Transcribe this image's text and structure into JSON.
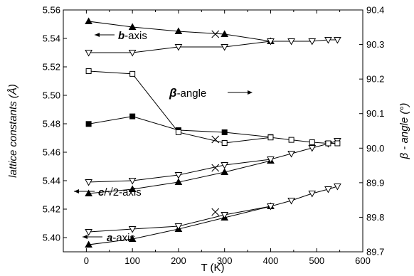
{
  "chart_data": {
    "type": "line",
    "xlabel": "T (K)",
    "ylabel_left": "lattice constants (Å)",
    "ylabel_right": "β - angle (°)",
    "xlim": [
      -50,
      600
    ],
    "ylim_left": [
      5.39,
      5.56
    ],
    "ylim_right": [
      89.7,
      90.4
    ],
    "x_ticks": [
      0,
      100,
      200,
      300,
      400,
      500,
      600
    ],
    "y_left_ticks": [
      "5.40",
      "5.42",
      "5.44",
      "5.46",
      "5.48",
      "5.50",
      "5.52",
      "5.54",
      "5.56"
    ],
    "y_right_ticks": [
      "89.7",
      "89.8",
      "89.9",
      "90.0",
      "90.1",
      "90.2",
      "90.3",
      "90.4"
    ],
    "annotations": {
      "b_axis": {
        "bold": "b",
        "rest": "-axis"
      },
      "c_axis": {
        "bold": "c",
        "rest": "/√2-axis"
      },
      "a_axis": {
        "bold": "a",
        "rest": "-axis"
      },
      "beta": {
        "symbol": "β",
        "rest": "-angle"
      }
    },
    "series": [
      {
        "axis": "left",
        "marker": "triangle-up-filled",
        "x": [
          5,
          100,
          200,
          300,
          400
        ],
        "y": [
          5.552,
          5.548,
          5.545,
          5.543,
          5.538
        ]
      },
      {
        "axis": "left",
        "marker": "triangle-down-open",
        "x": [
          5,
          100,
          200,
          300,
          400,
          445,
          490,
          525,
          545
        ],
        "y": [
          5.53,
          5.53,
          5.534,
          5.534,
          5.538,
          5.538,
          5.538,
          5.539,
          5.539
        ]
      },
      {
        "axis": "left",
        "marker": "triangle-up-filled",
        "x": [
          5,
          100,
          200,
          300,
          400
        ],
        "y": [
          5.431,
          5.434,
          5.439,
          5.446,
          5.454
        ]
      },
      {
        "axis": "left",
        "marker": "triangle-down-open",
        "x": [
          5,
          100,
          200,
          300,
          400,
          445,
          490,
          525,
          545
        ],
        "y": [
          5.439,
          5.44,
          5.444,
          5.451,
          5.455,
          5.459,
          5.463,
          5.466,
          5.468
        ]
      },
      {
        "axis": "left",
        "marker": "triangle-up-filled",
        "x": [
          5,
          100,
          200,
          300,
          400
        ],
        "y": [
          5.395,
          5.399,
          5.406,
          5.414,
          5.422
        ]
      },
      {
        "axis": "left",
        "marker": "triangle-down-open",
        "x": [
          5,
          100,
          200,
          300,
          400,
          445,
          490,
          525,
          545
        ],
        "y": [
          5.404,
          5.406,
          5.408,
          5.416,
          5.422,
          5.426,
          5.431,
          5.434,
          5.436
        ]
      },
      {
        "axis": "right",
        "marker": "square-filled",
        "x": [
          5,
          100,
          200,
          300,
          400
        ],
        "y": [
          90.07,
          90.092,
          90.052,
          90.046,
          90.032
        ]
      },
      {
        "axis": "right",
        "marker": "square-open",
        "x": [
          5,
          100,
          200,
          300,
          400,
          445,
          490,
          525,
          545
        ],
        "y": [
          90.223,
          90.215,
          90.046,
          90.015,
          90.031,
          90.024,
          90.017,
          90.014,
          90.014
        ]
      },
      {
        "axis": "left",
        "marker": "cross",
        "x": [
          280,
          280,
          280,
          280
        ],
        "y": [
          5.543,
          5.449,
          5.469,
          5.418
        ]
      }
    ]
  }
}
